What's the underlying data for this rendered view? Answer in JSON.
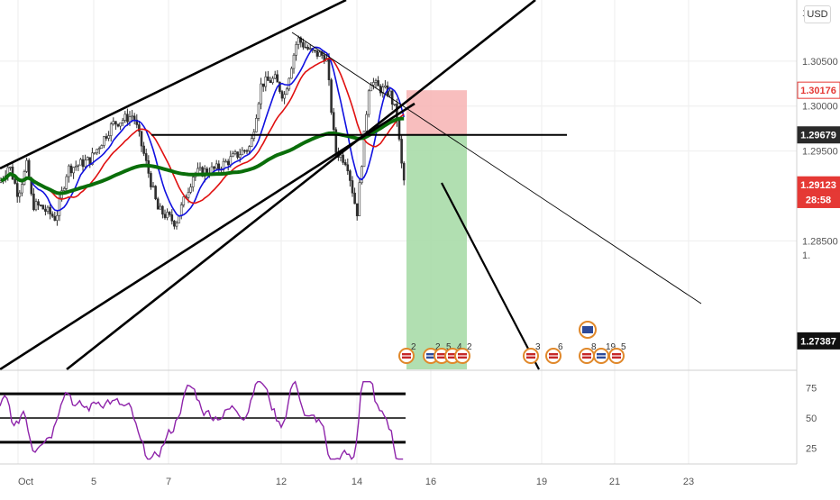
{
  "chart_data": [
    {
      "type": "candlestick",
      "pane": "price",
      "currency": "USD",
      "y_axis": {
        "ticks": [
          "1.30500",
          "1.30000",
          "1.29500",
          "1.28500"
        ],
        "tick_values": [
          1.305,
          1.3,
          1.295,
          1.285
        ],
        "partial_labels": [
          "1",
          "1."
        ],
        "ylim": [
          1.2707,
          1.3118
        ]
      },
      "x_axis": {
        "ticks": [
          "Oct",
          "5",
          "7",
          "12",
          "14",
          "16",
          "19",
          "21",
          "23"
        ]
      },
      "price_tags": [
        {
          "label": "1.30176",
          "value": 1.30176,
          "color": "#e53935",
          "style": "outline"
        },
        {
          "label": "1.29679",
          "value": 1.29679,
          "color": "#2a2a2a",
          "style": "filled"
        },
        {
          "label": "1.29123",
          "value": 1.29123,
          "color": "#e53935",
          "style": "filled"
        },
        {
          "label": "28:58",
          "value": 1.2896,
          "color": "#e53935",
          "style": "filled"
        },
        {
          "label": "1.27387",
          "value": 1.27387,
          "color": "#111111",
          "style": "filled"
        }
      ],
      "moving_averages": [
        {
          "color": "#1010e0",
          "period": 10
        },
        {
          "color": "#e01010",
          "period": 20
        },
        {
          "color": "#0a6e0a",
          "period": 90
        }
      ],
      "horizontal_level": 1.29679,
      "position": {
        "entry": 1.29679,
        "stop": 1.30176,
        "target": 1.27387
      },
      "event_markers": [
        {
          "label": "2",
          "flag": "mixed"
        },
        {
          "label": "2",
          "flag": "uk"
        },
        {
          "label": "5",
          "flag": "us"
        },
        {
          "label": "4",
          "flag": "us"
        },
        {
          "label": "2",
          "flag": "us"
        },
        {
          "label": "3",
          "flag": "us"
        },
        {
          "label": "6",
          "flag": "us"
        },
        {
          "label": "8",
          "flag": "us"
        },
        {
          "label": "19",
          "flag": "uk"
        },
        {
          "label": "5",
          "flag": "us"
        }
      ],
      "colors": {
        "up": "#26a69a",
        "down": "#ef5350",
        "candle": "#2e2e2e",
        "grid": "#eeeeee"
      }
    },
    {
      "type": "line",
      "pane": "rsi",
      "series_color": "#8e24aa",
      "y_axis": {
        "ticks": [
          "75",
          "50",
          "25"
        ],
        "tick_values": [
          75,
          50,
          25
        ],
        "ylim": [
          12,
          88
        ]
      },
      "levels": [
        70,
        50,
        30
      ]
    }
  ]
}
